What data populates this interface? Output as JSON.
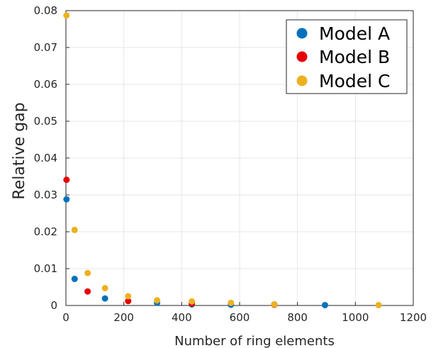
{
  "chart_data": {
    "type": "scatter",
    "title": "",
    "xlabel": "Number of ring elements",
    "ylabel": "Relative gap",
    "xlim": [
      0,
      1200
    ],
    "ylim": [
      0,
      0.08
    ],
    "xticks": [
      0,
      200,
      400,
      600,
      800,
      1000,
      1200
    ],
    "xtick_labels": [
      "0",
      "200",
      "400",
      "600",
      "800",
      "1000",
      "1200"
    ],
    "yticks": [
      0,
      0.01,
      0.02,
      0.03,
      0.04,
      0.05,
      0.06,
      0.07,
      0.08
    ],
    "ytick_labels": [
      "0",
      "0.01",
      "0.02",
      "0.03",
      "0.04",
      "0.05",
      "0.06",
      "0.07",
      "0.08"
    ],
    "grid": true,
    "legend_position": "top-right",
    "series": [
      {
        "name": "Model A",
        "color": "#0072bd",
        "points": [
          {
            "x": 2,
            "y": 0.0288
          },
          {
            "x": 30,
            "y": 0.0072
          },
          {
            "x": 135,
            "y": 0.0019
          },
          {
            "x": 315,
            "y": 0.0007
          },
          {
            "x": 435,
            "y": 0.0003
          },
          {
            "x": 570,
            "y": 0.0002
          },
          {
            "x": 720,
            "y": 0.0003
          },
          {
            "x": 895,
            "y": 0.0001
          }
        ]
      },
      {
        "name": "Model B",
        "color": "#e60000",
        "points": [
          {
            "x": 2,
            "y": 0.0341
          },
          {
            "x": 75,
            "y": 0.0038
          },
          {
            "x": 215,
            "y": 0.0012
          },
          {
            "x": 435,
            "y": 0.0005
          },
          {
            "x": 720,
            "y": 0.0002
          }
        ]
      },
      {
        "name": "Model C",
        "color": "#edb120",
        "points": [
          {
            "x": 2,
            "y": 0.0787
          },
          {
            "x": 30,
            "y": 0.0205
          },
          {
            "x": 75,
            "y": 0.0088
          },
          {
            "x": 135,
            "y": 0.0047
          },
          {
            "x": 215,
            "y": 0.0025
          },
          {
            "x": 315,
            "y": 0.0014
          },
          {
            "x": 435,
            "y": 0.0011
          },
          {
            "x": 570,
            "y": 0.0007
          },
          {
            "x": 720,
            "y": 0.0003
          },
          {
            "x": 1080,
            "y": 0.0001
          }
        ]
      }
    ]
  }
}
